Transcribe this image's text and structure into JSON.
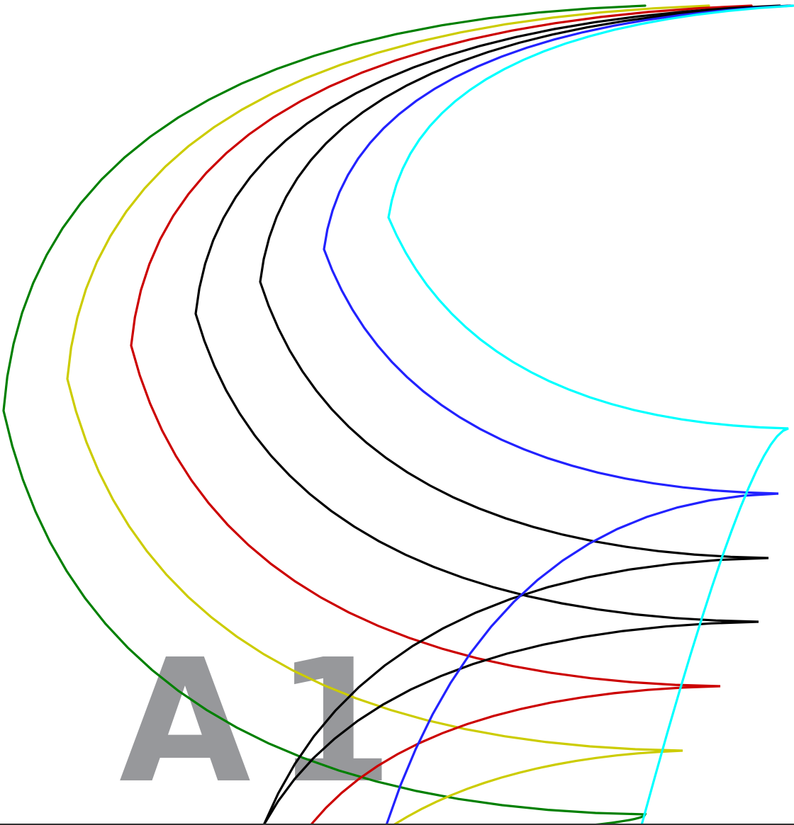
{
  "watermark": {
    "letter": "A",
    "number": "1",
    "color": "#97989b"
  },
  "curves": [
    {
      "color": "#008000"
    },
    {
      "color": "#cccc00"
    },
    {
      "color": "#cc0000"
    },
    {
      "color": "#000000"
    },
    {
      "color": "#000000"
    },
    {
      "color": "#2222ff"
    },
    {
      "color": "#00ffff"
    }
  ]
}
